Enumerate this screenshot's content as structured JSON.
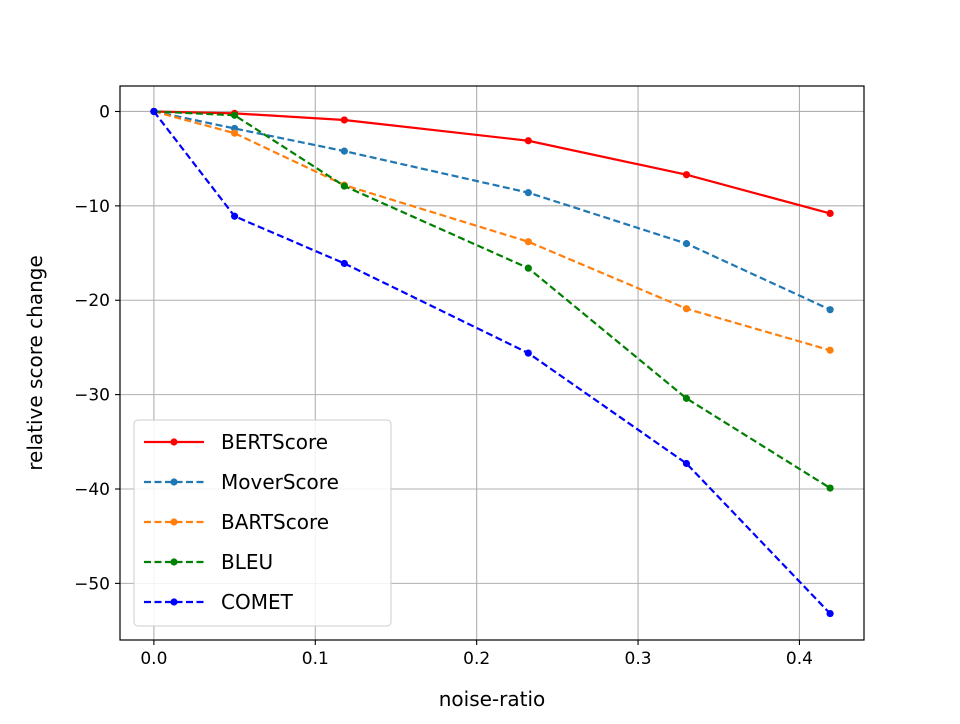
{
  "chart_data": {
    "type": "line",
    "title": "",
    "xlabel": "noise-ratio",
    "ylabel": "relative score change",
    "xlim": [
      -0.021,
      0.44
    ],
    "ylim": [
      -56,
      2.7
    ],
    "x_ticks": [
      0.0,
      0.1,
      0.2,
      0.3,
      0.4
    ],
    "x_tick_labels": [
      "0.0",
      "0.1",
      "0.2",
      "0.3",
      "0.4"
    ],
    "y_ticks": [
      0,
      -10,
      -20,
      -30,
      -40,
      -50
    ],
    "y_tick_labels": [
      "0",
      "−10",
      "−20",
      "−30",
      "−40",
      "−50"
    ],
    "grid": true,
    "legend_position": "lower-left",
    "x": [
      0.0,
      0.05,
      0.118,
      0.232,
      0.33,
      0.419
    ],
    "series": [
      {
        "name": "BERTScore",
        "color": "#ff0000",
        "dash": "solid",
        "values": [
          0,
          -0.2,
          -0.9,
          -3.1,
          -6.7,
          -10.8
        ]
      },
      {
        "name": "MoverScore",
        "color": "#1f77b4",
        "dash": "dashed",
        "values": [
          0,
          -1.8,
          -4.2,
          -8.6,
          -14.0,
          -21.0
        ]
      },
      {
        "name": "BARTScore",
        "color": "#ff7f0e",
        "dash": "dashed",
        "values": [
          0,
          -2.3,
          -7.8,
          -13.8,
          -20.9,
          -25.3
        ]
      },
      {
        "name": "BLEU",
        "color": "#008000",
        "dash": "dashed",
        "values": [
          0,
          -0.4,
          -7.9,
          -16.6,
          -30.4,
          -39.9
        ]
      },
      {
        "name": "COMET",
        "color": "#0000ff",
        "dash": "dashed",
        "values": [
          0,
          -11.1,
          -16.1,
          -25.6,
          -37.3,
          -53.2
        ]
      }
    ]
  }
}
